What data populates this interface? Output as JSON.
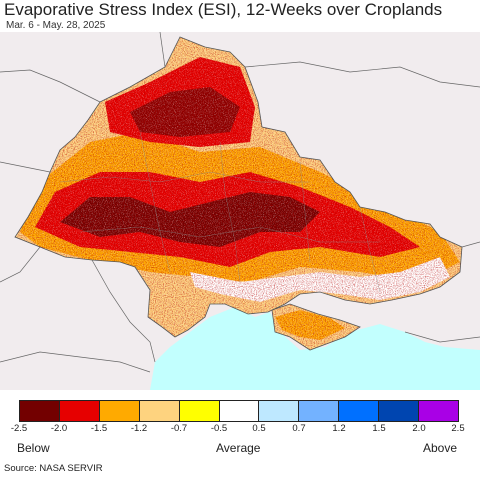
{
  "header": {
    "title": "Evaporative Stress Index (ESI), 12-Weeks over Croplands",
    "subtitle": "Mar. 6 - May. 28, 2025"
  },
  "map": {
    "region": "Ukraine",
    "land_color": "#f1ecee",
    "sea_color": "#c2fffe",
    "border_color": "#555555"
  },
  "legend": {
    "colors": [
      "#730000",
      "#e60000",
      "#ffaa00",
      "#fed37f",
      "#ffff00",
      "#ffffff",
      "#bee8ff",
      "#73b2ff",
      "#0070ff",
      "#0045b0",
      "#a900e6"
    ],
    "ticks": [
      "-2.5",
      "-2.0",
      "-1.5",
      "-1.2",
      "-0.7",
      "-0.5",
      "0.5",
      "0.7",
      "1.2",
      "1.5",
      "2.0",
      "2.5"
    ],
    "below_label": "Below",
    "average_label": "Average",
    "above_label": "Above"
  },
  "source": "Source: NASA SERVIR"
}
